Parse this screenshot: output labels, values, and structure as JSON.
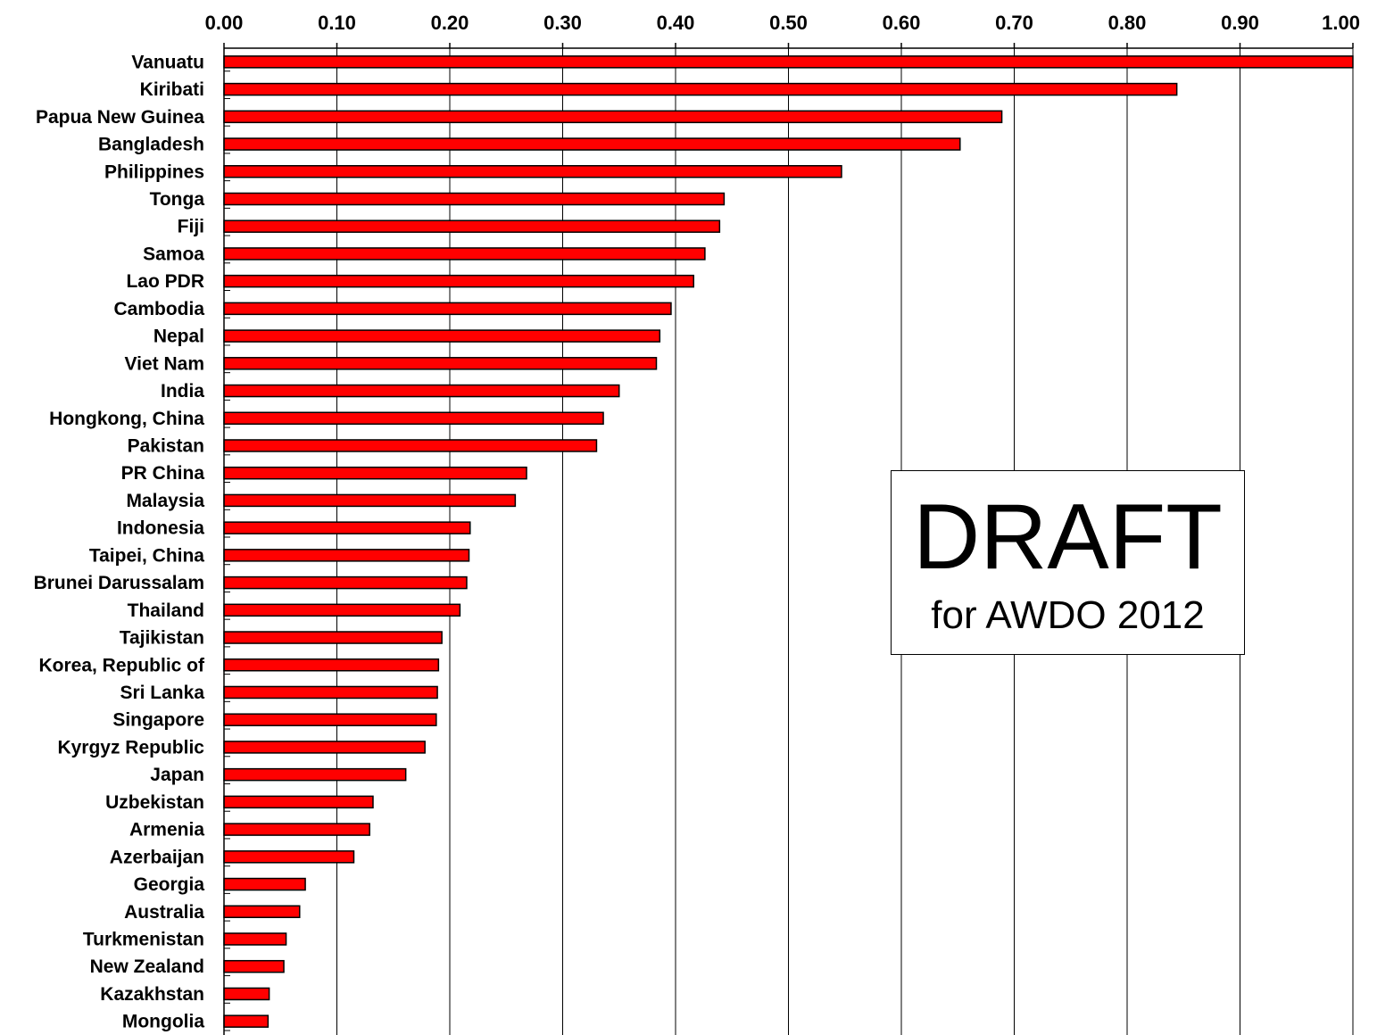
{
  "chart_data": {
    "type": "bar",
    "orientation": "horizontal",
    "categories": [
      "Vanuatu",
      "Kiribati",
      "Papua New Guinea",
      "Bangladesh",
      "Philippines",
      "Tonga",
      "Fiji",
      "Samoa",
      "Lao PDR",
      "Cambodia",
      "Nepal",
      "Viet Nam",
      "India",
      "Hongkong, China",
      "Pakistan",
      "PR China",
      "Malaysia",
      "Indonesia",
      "Taipei, China",
      "Brunei Darussalam",
      "Thailand",
      "Tajikistan",
      "Korea, Republic of",
      "Sri Lanka",
      "Singapore",
      "Kyrgyz Republic",
      "Japan",
      "Uzbekistan",
      "Armenia",
      "Azerbaijan",
      "Georgia",
      "Australia",
      "Turkmenistan",
      "New Zealand",
      "Kazakhstan",
      "Mongolia"
    ],
    "values": [
      1.0,
      0.844,
      0.689,
      0.652,
      0.547,
      0.443,
      0.439,
      0.426,
      0.416,
      0.396,
      0.386,
      0.383,
      0.35,
      0.336,
      0.33,
      0.268,
      0.258,
      0.218,
      0.217,
      0.215,
      0.209,
      0.193,
      0.19,
      0.189,
      0.188,
      0.178,
      0.161,
      0.132,
      0.129,
      0.115,
      0.072,
      0.067,
      0.055,
      0.053,
      0.04,
      0.039
    ],
    "xlim": [
      0,
      1
    ],
    "x_ticks": [
      "0.00",
      "0.10",
      "0.20",
      "0.30",
      "0.40",
      "0.50",
      "0.60",
      "0.70",
      "0.80",
      "0.90",
      "1.00"
    ],
    "x_axis_position": "top",
    "grid": "vertical",
    "bar_color": "#ff0000",
    "bar_edge_color": "#000000"
  },
  "watermark": {
    "title": "DRAFT",
    "subtitle": "for AWDO 2012"
  }
}
